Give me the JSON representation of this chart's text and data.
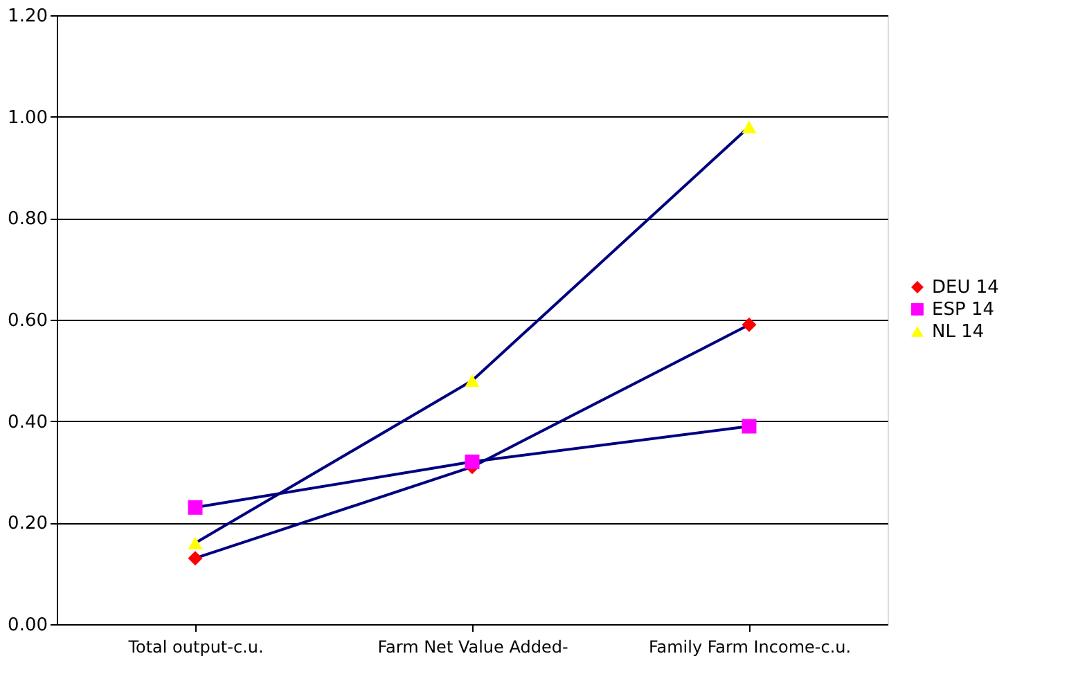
{
  "chart_data": {
    "type": "line",
    "categories": [
      "Total output-c.u.",
      "Farm Net Value Added-",
      "Family Farm Income-c.u."
    ],
    "series": [
      {
        "name": "DEU 14",
        "color": "#ff0000",
        "marker": "diamond",
        "values": [
          0.13,
          0.31,
          0.59
        ]
      },
      {
        "name": "ESP 14",
        "color": "#ff00ff",
        "marker": "square",
        "values": [
          0.23,
          0.32,
          0.39
        ]
      },
      {
        "name": "NL 14",
        "color": "#ffff00",
        "marker": "triangle",
        "values": [
          0.16,
          0.48,
          0.98
        ]
      }
    ],
    "ylim": [
      0,
      1.2
    ],
    "yticks": [
      {
        "value": 0,
        "label": "0.00"
      },
      {
        "value": 0.2,
        "label": "0.20"
      },
      {
        "value": 0.4,
        "label": "0.40"
      },
      {
        "value": 0.6,
        "label": "0.60"
      },
      {
        "value": 0.8,
        "label": "0.80"
      },
      {
        "value": 1.0,
        "label": "1.00"
      },
      {
        "value": 1.2,
        "label": "1.20"
      }
    ],
    "grid": "y",
    "legend": "right",
    "line_style": "solid"
  }
}
